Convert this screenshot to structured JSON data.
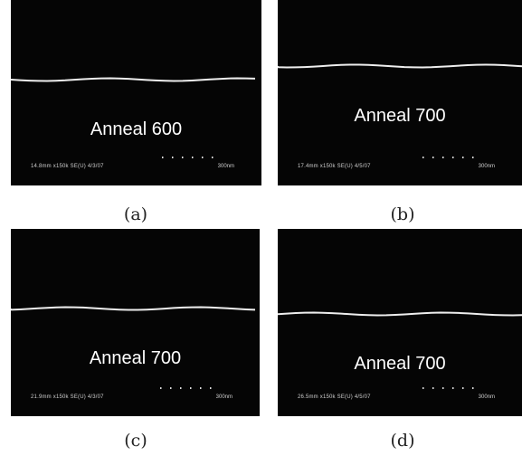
{
  "panels": [
    {
      "label": "Anneal 600",
      "info": "14.8mm x150k SE(U) 4/3/07",
      "scale": "300nm",
      "caption": "(a)"
    },
    {
      "label": "Anneal 700",
      "info": "17.4mm x150k SE(U) 4/5/07",
      "scale": "300nm",
      "caption": "(b)"
    },
    {
      "label": "Anneal 700",
      "info": "21.9mm x150k SE(U) 4/3/07",
      "scale": "300nm",
      "caption": "(c)"
    },
    {
      "label": "Anneal 700",
      "info": "26.5mm x150k SE(U) 4/5/07",
      "scale": "300nm",
      "caption": "(d)"
    }
  ]
}
